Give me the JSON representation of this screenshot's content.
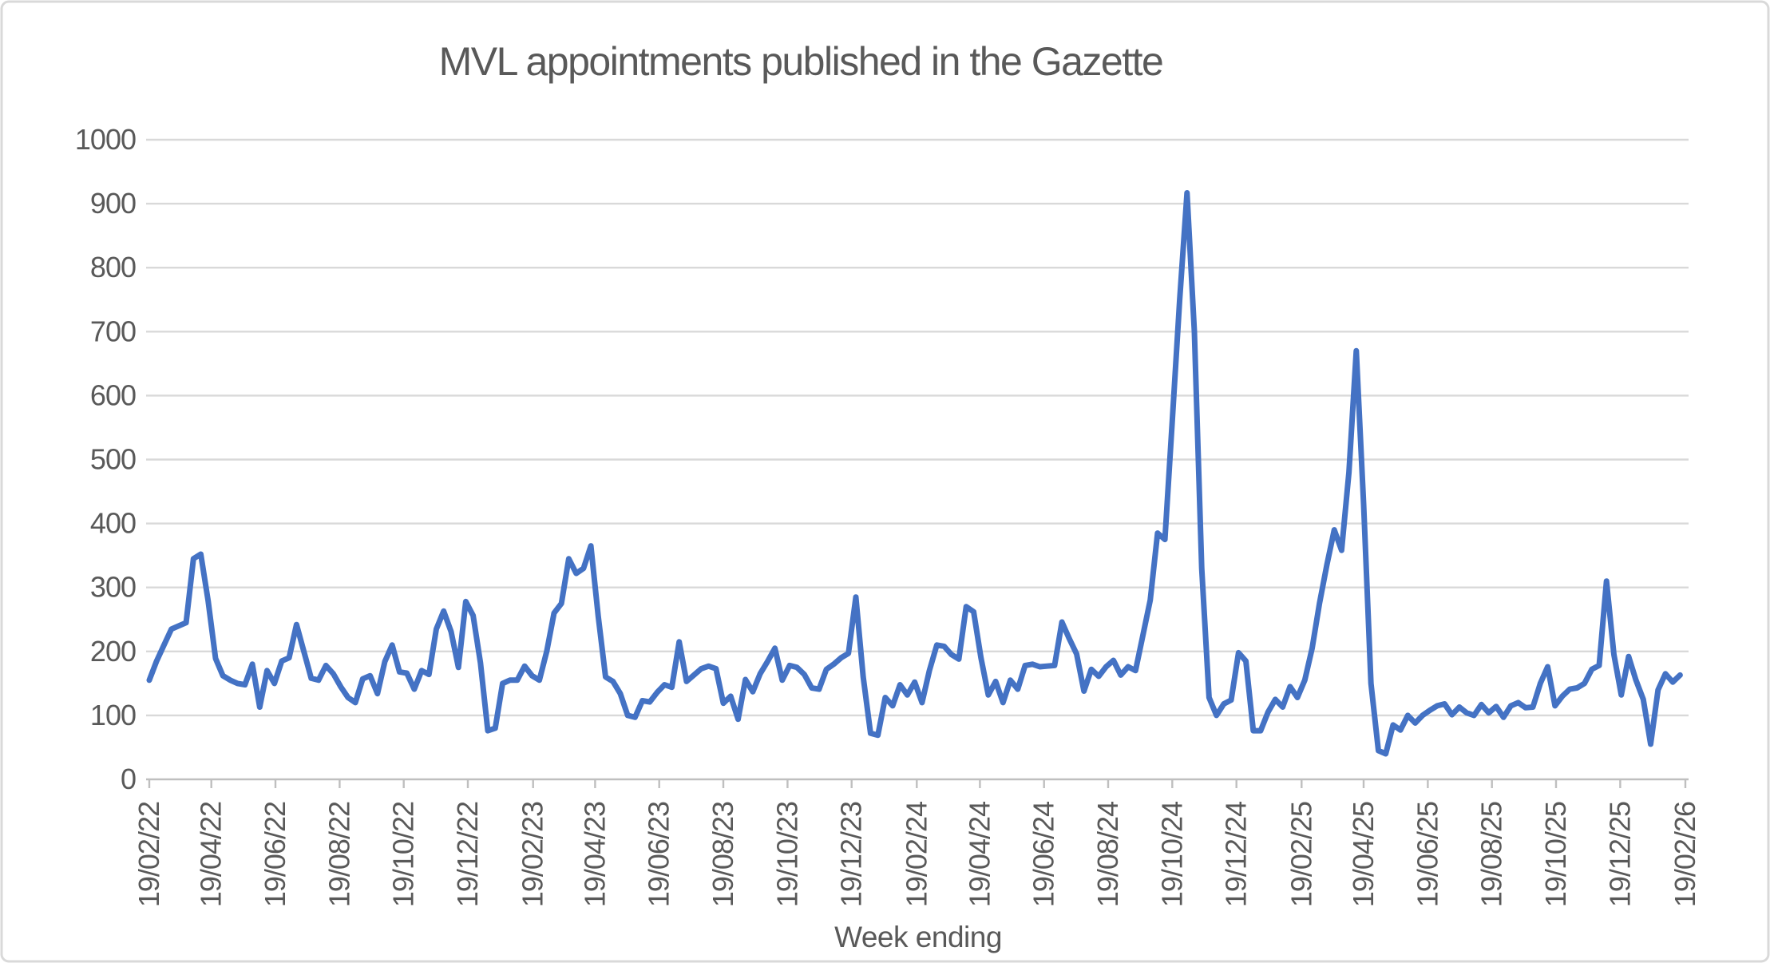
{
  "chart_data": {
    "type": "line",
    "title": "MVL appointments published in the Gazette",
    "xlabel": "Week ending",
    "ylabel": "",
    "ylim": [
      0,
      1000
    ],
    "y_tick_labels": [
      "0",
      "100",
      "200",
      "300",
      "400",
      "500",
      "600",
      "700",
      "800",
      "900",
      "1000"
    ],
    "x_tick_labels": [
      "19/02/22",
      "19/04/22",
      "19/06/22",
      "19/08/22",
      "19/10/22",
      "19/12/22",
      "19/02/23",
      "19/04/23",
      "19/06/23",
      "19/08/23",
      "19/10/23",
      "19/12/23",
      "19/02/24",
      "19/04/24",
      "19/06/24",
      "19/08/24",
      "19/10/24",
      "19/12/24",
      "19/02/25",
      "19/04/25",
      "19/06/25",
      "19/08/25",
      "19/10/25",
      "19/12/25",
      "19/02/26"
    ],
    "x_tick_day_offsets": [
      0,
      59,
      120,
      181,
      242,
      303,
      365,
      424,
      485,
      546,
      607,
      668,
      730,
      790,
      851,
      912,
      973,
      1034,
      1096,
      1155,
      1216,
      1277,
      1338,
      1399,
      1461
    ],
    "x_total_days": 1461,
    "point_interval_days": 7,
    "grid": true,
    "legend": "none",
    "line_color": "#4472C4",
    "gridline_color": "#D9D9D9",
    "axis_color": "#BFBFBF",
    "text_color": "#595959",
    "border_color": "#D9D9D9",
    "series": [
      {
        "name": "MVL appointments",
        "values": [
          155,
          185,
          210,
          235,
          240,
          245,
          345,
          352,
          279,
          189,
          162,
          155,
          150,
          148,
          180,
          113,
          170,
          150,
          185,
          190,
          242,
          200,
          158,
          155,
          178,
          165,
          145,
          128,
          120,
          157,
          162,
          134,
          184,
          210,
          168,
          166,
          141,
          170,
          164,
          235,
          263,
          231,
          175,
          278,
          256,
          182,
          76,
          80,
          150,
          155,
          155,
          177,
          162,
          155,
          200,
          260,
          275,
          345,
          322,
          330,
          365,
          255,
          160,
          153,
          134,
          100,
          97,
          123,
          121,
          136,
          148,
          144,
          215,
          153,
          163,
          173,
          177,
          173,
          119,
          130,
          94,
          156,
          137,
          165,
          184,
          205,
          155,
          178,
          175,
          164,
          143,
          141,
          172,
          180,
          190,
          197,
          285,
          160,
          72,
          69,
          128,
          115,
          148,
          132,
          152,
          120,
          170,
          210,
          208,
          195,
          188,
          270,
          262,
          190,
          132,
          153,
          120,
          155,
          141,
          178,
          180,
          176,
          177,
          178,
          246,
          220,
          196,
          138,
          172,
          161,
          176,
          186,
          163,
          176,
          170,
          225,
          280,
          385,
          375,
          560,
          750,
          917,
          700,
          330,
          128,
          100,
          118,
          124,
          198,
          185,
          76,
          76,
          105,
          125,
          113,
          145,
          128,
          155,
          205,
          275,
          335,
          390,
          358,
          480,
          670,
          430,
          150,
          45,
          40,
          85,
          77,
          100,
          88,
          100,
          108,
          115,
          118,
          101,
          113,
          104,
          100,
          117,
          104,
          114,
          97,
          115,
          120,
          112,
          113,
          150,
          176,
          115,
          130,
          141,
          143,
          150,
          172,
          178,
          310,
          195,
          132,
          192,
          155,
          125,
          55,
          140,
          165,
          152,
          163
        ]
      }
    ]
  }
}
